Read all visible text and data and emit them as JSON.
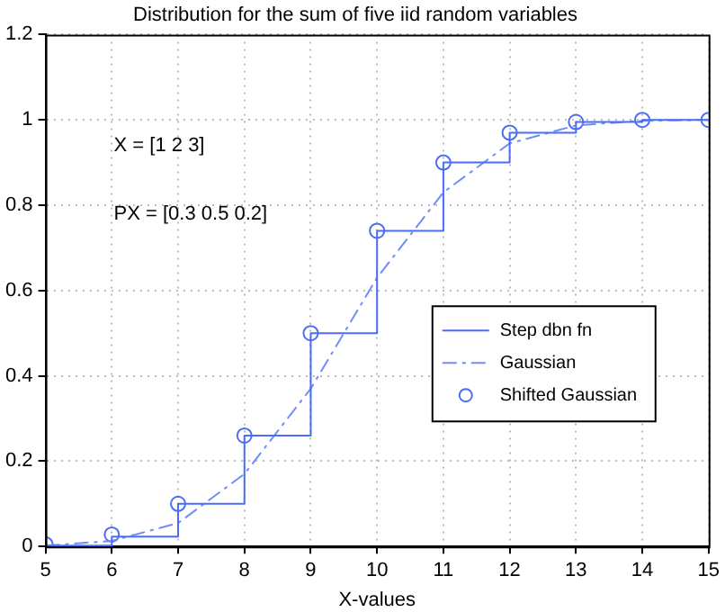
{
  "chart_data": {
    "type": "line",
    "title": "Distribution for the sum of five iid random variables",
    "xlabel": "X-values",
    "x": [
      5,
      6,
      7,
      8,
      9,
      10,
      11,
      12,
      13,
      14,
      15
    ],
    "series": [
      {
        "name": "Step dbn fn",
        "type": "step",
        "color": "#4a6cf7",
        "line_style": "solid",
        "marker": "none",
        "values": [
          0.002,
          0.023,
          0.1,
          0.26,
          0.5,
          0.74,
          0.9,
          0.97,
          0.995,
          1.0,
          1.0
        ]
      },
      {
        "name": "Gaussian",
        "color": "#6f8cf7",
        "line_style": "dashed",
        "marker": "none",
        "values": [
          0.002,
          0.013,
          0.055,
          0.17,
          0.37,
          0.63,
          0.83,
          0.945,
          0.987,
          0.998,
          1.0
        ]
      },
      {
        "name": "Shifted Gaussian",
        "type": "scatter",
        "color": "#4a6cf7",
        "marker": "circle",
        "values": [
          0.005,
          0.028,
          0.1,
          0.26,
          0.5,
          0.74,
          0.9,
          0.97,
          0.995,
          1.0,
          1.0
        ]
      }
    ],
    "annotations": [
      "X = [1 2 3]",
      "PX = [0.3 0.5 0.2]"
    ],
    "xlim": [
      5,
      15
    ],
    "xticks": [
      5,
      6,
      7,
      8,
      9,
      10,
      11,
      12,
      13,
      14,
      15
    ],
    "ylim": [
      0,
      1.2
    ],
    "yticks": [
      0,
      0.2,
      0.4,
      0.6,
      0.8,
      1,
      1.2
    ],
    "grid": true,
    "legend": "bottom right"
  }
}
